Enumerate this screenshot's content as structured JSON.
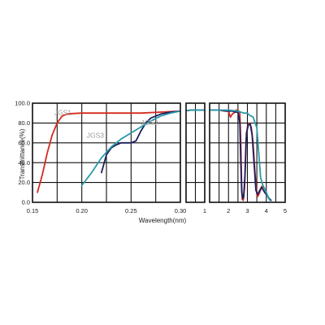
{
  "chart_data": {
    "type": "line",
    "title": "",
    "xlabel": "Wavelength(nm)",
    "ylabel": "Transmittance(%)",
    "ylim": [
      0,
      100
    ],
    "y_ticks": [
      "0.0",
      "20.0",
      "40.0",
      "60.0",
      "80.0",
      "100.0"
    ],
    "grid": true,
    "x_segments": [
      {
        "range": [
          0.15,
          0.3
        ],
        "tick_values": [
          0.15,
          0.2,
          0.25,
          0.3
        ],
        "tick_labels": [
          "0.15",
          "0.20",
          "0.25",
          "0.30"
        ],
        "minor_lines": [
          0.15,
          0.175,
          0.2,
          0.225,
          0.25,
          0.275,
          0.3
        ]
      },
      {
        "range": [
          0.3,
          1.0
        ],
        "tick_values": [
          1
        ],
        "tick_labels": [
          "1"
        ],
        "minor_lines": [
          0.3,
          0.65,
          1.0
        ]
      },
      {
        "range": [
          1,
          5
        ],
        "tick_values": [
          2,
          3,
          4,
          5
        ],
        "tick_labels": [
          "2",
          "3",
          "4",
          "5"
        ],
        "minor_lines": [
          1,
          1.5,
          2,
          2.5,
          3,
          3.5,
          4,
          4.5,
          5
        ]
      }
    ],
    "series": [
      {
        "name": "JGS1",
        "color": "#d42a1e",
        "points": [
          [
            0.155,
            10
          ],
          [
            0.16,
            28
          ],
          [
            0.165,
            50
          ],
          [
            0.17,
            68
          ],
          [
            0.175,
            80
          ],
          [
            0.18,
            87
          ],
          [
            0.185,
            89
          ],
          [
            0.19,
            89.5
          ],
          [
            0.2,
            90
          ],
          [
            0.22,
            90
          ],
          [
            0.26,
            90
          ],
          [
            0.28,
            91
          ],
          [
            0.3,
            92
          ],
          [
            0.5,
            93
          ],
          [
            1.0,
            93
          ],
          [
            1.2,
            93
          ],
          [
            1.5,
            93
          ],
          [
            1.8,
            92
          ],
          [
            2.0,
            92
          ],
          [
            2.1,
            86
          ],
          [
            2.2,
            89
          ],
          [
            2.35,
            91
          ],
          [
            2.4,
            93
          ],
          [
            2.5,
            93
          ],
          [
            2.6,
            90
          ],
          [
            2.65,
            60
          ],
          [
            2.7,
            15
          ],
          [
            2.73,
            3
          ],
          [
            2.78,
            2
          ],
          [
            2.85,
            15
          ],
          [
            2.92,
            60
          ],
          [
            3.0,
            76
          ],
          [
            3.1,
            80
          ],
          [
            3.2,
            76
          ],
          [
            3.3,
            60
          ],
          [
            3.4,
            30
          ],
          [
            3.5,
            8
          ],
          [
            3.55,
            6
          ],
          [
            3.65,
            10
          ],
          [
            3.75,
            16
          ],
          [
            3.9,
            14
          ],
          [
            4.0,
            10
          ],
          [
            4.1,
            5
          ],
          [
            4.2,
            2
          ]
        ]
      },
      {
        "name": "JGS2",
        "color": "#1c1f5e",
        "points": [
          [
            0.22,
            30
          ],
          [
            0.225,
            48
          ],
          [
            0.23,
            55
          ],
          [
            0.235,
            58
          ],
          [
            0.24,
            60
          ],
          [
            0.25,
            60
          ],
          [
            0.255,
            62
          ],
          [
            0.26,
            72
          ],
          [
            0.265,
            80
          ],
          [
            0.27,
            85
          ],
          [
            0.28,
            89
          ],
          [
            0.29,
            91
          ],
          [
            0.3,
            92
          ],
          [
            0.5,
            93
          ],
          [
            1.0,
            93
          ],
          [
            1.5,
            93
          ],
          [
            1.9,
            92
          ],
          [
            2.2,
            92
          ],
          [
            2.4,
            91
          ],
          [
            2.5,
            91
          ],
          [
            2.6,
            80
          ],
          [
            2.65,
            40
          ],
          [
            2.7,
            10
          ],
          [
            2.75,
            4
          ],
          [
            2.8,
            5
          ],
          [
            2.88,
            30
          ],
          [
            2.95,
            70
          ],
          [
            3.05,
            78
          ],
          [
            3.15,
            79
          ],
          [
            3.25,
            68
          ],
          [
            3.35,
            40
          ],
          [
            3.45,
            12
          ],
          [
            3.55,
            8
          ],
          [
            3.65,
            12
          ],
          [
            3.75,
            15
          ],
          [
            3.85,
            12
          ],
          [
            3.95,
            9
          ],
          [
            4.05,
            7
          ],
          [
            4.15,
            4
          ],
          [
            4.25,
            2
          ]
        ]
      },
      {
        "name": "JGS3",
        "color": "#2a9aa8",
        "points": [
          [
            0.2,
            17
          ],
          [
            0.21,
            30
          ],
          [
            0.22,
            45
          ],
          [
            0.23,
            56
          ],
          [
            0.24,
            64
          ],
          [
            0.25,
            70
          ],
          [
            0.26,
            76
          ],
          [
            0.27,
            82
          ],
          [
            0.28,
            87
          ],
          [
            0.29,
            90
          ],
          [
            0.3,
            92
          ],
          [
            0.5,
            93
          ],
          [
            1.0,
            93
          ],
          [
            1.5,
            93
          ],
          [
            2.0,
            93
          ],
          [
            2.5,
            92
          ],
          [
            2.8,
            90
          ],
          [
            3.0,
            90
          ],
          [
            3.1,
            88
          ],
          [
            3.3,
            86
          ],
          [
            3.5,
            75
          ],
          [
            3.6,
            50
          ],
          [
            3.7,
            25
          ],
          [
            3.8,
            18
          ],
          [
            3.9,
            14
          ],
          [
            4.0,
            10
          ],
          [
            4.1,
            5
          ],
          [
            4.2,
            2
          ]
        ]
      }
    ]
  }
}
